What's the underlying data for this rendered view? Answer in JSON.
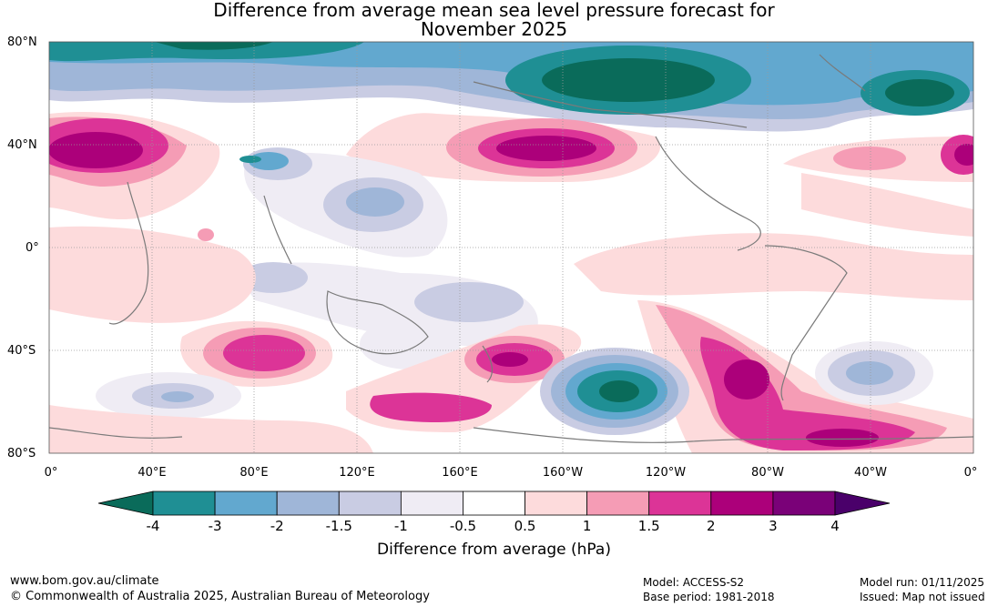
{
  "title": {
    "line1": "Difference from average mean sea level pressure forecast for",
    "line2": "November 2025"
  },
  "map": {
    "lat_labels": [
      "80°N",
      "40°N",
      "0°",
      "40°S",
      "80°S"
    ],
    "lon_labels": [
      "0°",
      "40°E",
      "80°E",
      "120°E",
      "160°E",
      "160°W",
      "120°W",
      "80°W",
      "40°W",
      "0°"
    ]
  },
  "colorbar": {
    "ticks": [
      "-4",
      "-3",
      "-2",
      "-1.5",
      "-1",
      "-0.5",
      "0.5",
      "1",
      "1.5",
      "2",
      "3",
      "4"
    ],
    "colors": [
      "#0a6b5a",
      "#1f8f94",
      "#62a8cf",
      "#9fb6d8",
      "#c9cce3",
      "#efecf4",
      "#ffffff",
      "#fddbdc",
      "#f59cb5",
      "#dc3497",
      "#ac007a",
      "#7a0178",
      "#4a006a"
    ],
    "label": "Difference from average (hPa)"
  },
  "footer": {
    "website": "www.bom.gov.au/climate",
    "copyright": "© Commonwealth of Australia 2025, Australian Bureau of Meteorology",
    "model": "Model: ACCESS-S2",
    "base_period": "Base period: 1981-2018",
    "model_run": "Model run: 01/11/2025",
    "issued": "Issued: Map not issued"
  }
}
